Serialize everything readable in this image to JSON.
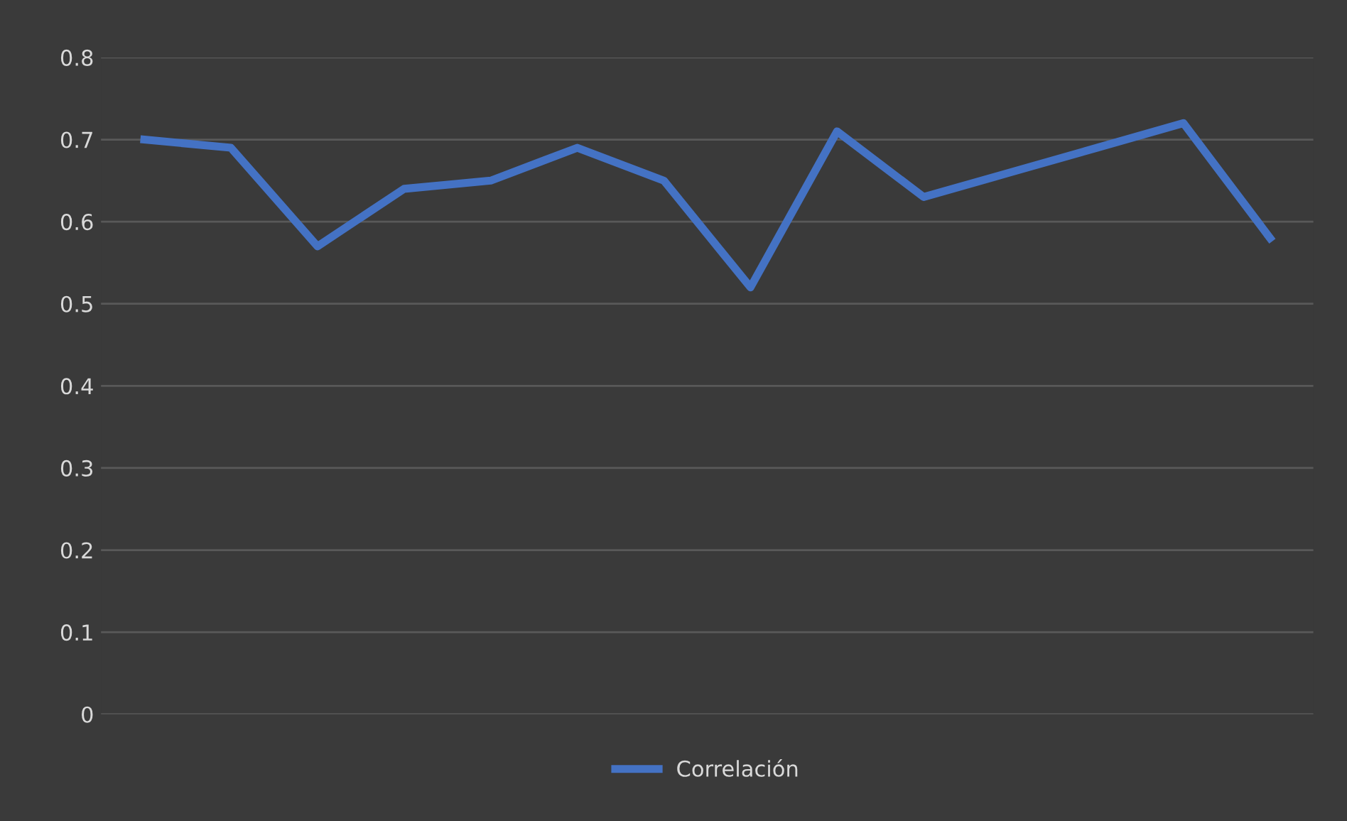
{
  "chart_data": {
    "type": "line",
    "categories": [
      null,
      null,
      null,
      null,
      null,
      null,
      null,
      null,
      null,
      null,
      null,
      null,
      null,
      null
    ],
    "series": [
      {
        "name": "Correlación",
        "color": "#4472c4",
        "values": [
          0.7,
          0.69,
          0.57,
          0.64,
          0.65,
          0.69,
          0.65,
          0.52,
          0.71,
          0.63,
          0.66,
          0.69,
          0.72,
          0.58
        ]
      }
    ],
    "ylim": [
      0,
      0.8
    ],
    "yticks": [
      {
        "value": 0,
        "label": "0"
      },
      0.1,
      0.2,
      0.3,
      0.4,
      0.5,
      0.6,
      0.7,
      0.8
    ],
    "grid": "y",
    "legend": "bottom",
    "marker": "none",
    "line_style": "solid"
  }
}
